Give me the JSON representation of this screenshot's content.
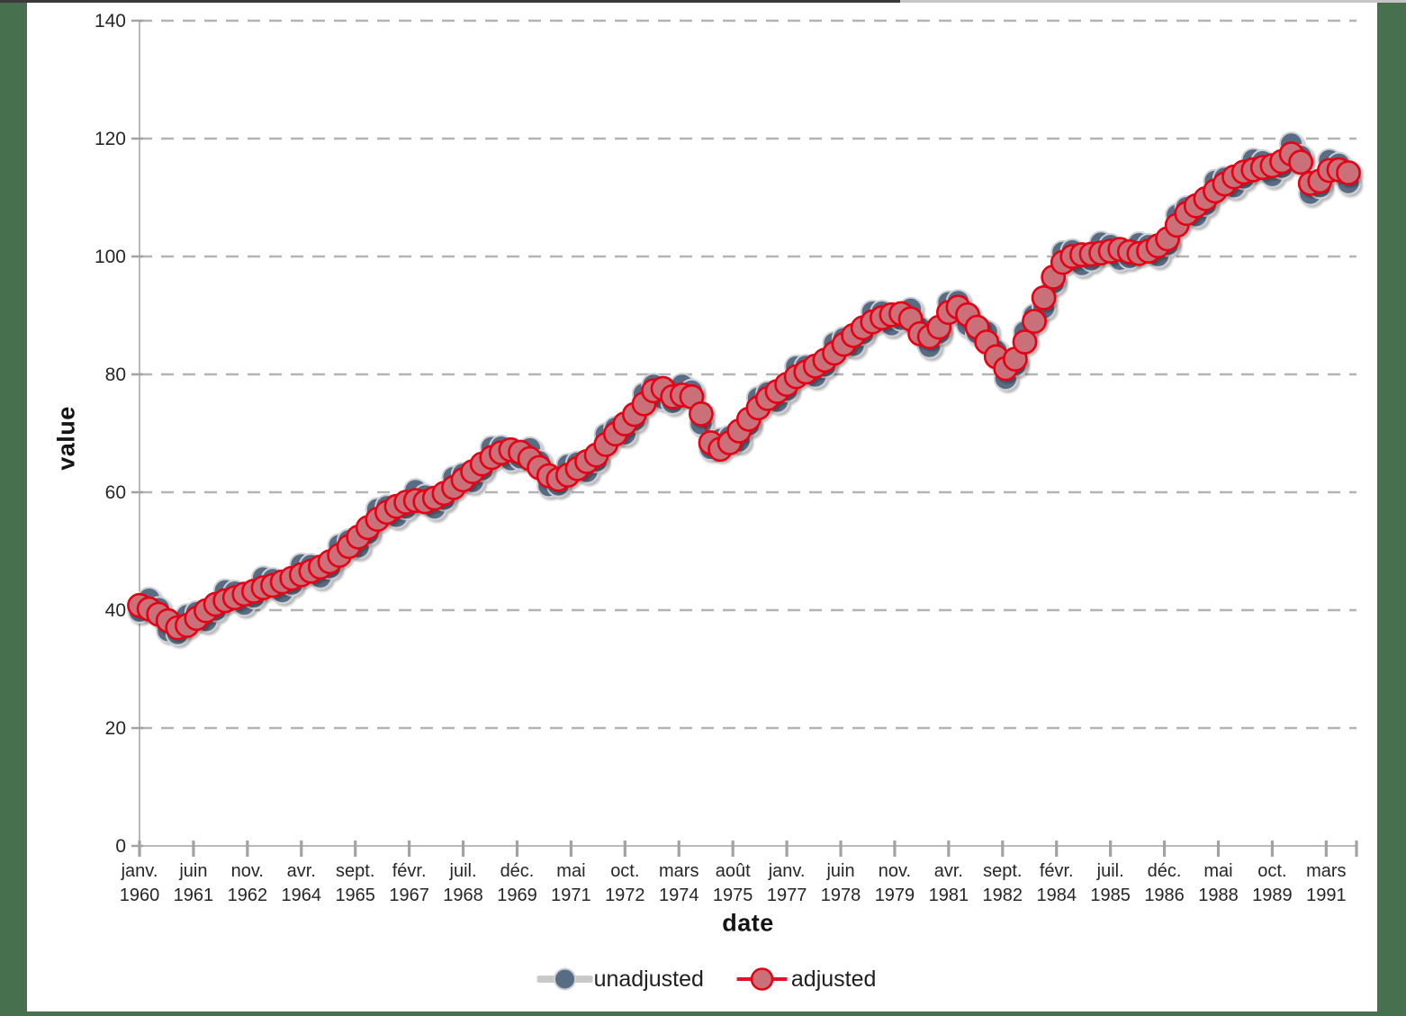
{
  "window": {
    "border_color": "#47704e",
    "panel_color": "#ffffff",
    "bottom_strip_color": "#c9c9c9"
  },
  "axes": {
    "xlabel": "date",
    "ylabel": "value"
  },
  "legend": {
    "items": [
      {
        "label": "unadjusted"
      },
      {
        "label": "adjusted"
      }
    ]
  },
  "chart_data": {
    "type": "line",
    "title": "",
    "xlabel": "date",
    "ylabel": "value",
    "ylim": [
      0,
      140
    ],
    "yticks": [
      0,
      20,
      40,
      60,
      80,
      100,
      120,
      140
    ],
    "grid": "horizontal-dashed",
    "gridline_color": "#b3b3b3",
    "axis_color": "#b9b9b9",
    "tick_color": "#a2a2a2",
    "tick_label_color": "#262626",
    "legend_position": "bottom-center",
    "frequency": "quarterly",
    "x_months_per_point": 3,
    "x_tick_interval_months": 17,
    "xticks": [
      {
        "m": 0,
        "month": "janv.",
        "year": "1960"
      },
      {
        "m": 17,
        "month": "juin",
        "year": "1961"
      },
      {
        "m": 34,
        "month": "nov.",
        "year": "1962"
      },
      {
        "m": 51,
        "month": "avr.",
        "year": "1964"
      },
      {
        "m": 68,
        "month": "sept.",
        "year": "1965"
      },
      {
        "m": 85,
        "month": "févr.",
        "year": "1967"
      },
      {
        "m": 102,
        "month": "juil.",
        "year": "1968"
      },
      {
        "m": 119,
        "month": "déc.",
        "year": "1969"
      },
      {
        "m": 136,
        "month": "mai",
        "year": "1971"
      },
      {
        "m": 153,
        "month": "oct.",
        "year": "1972"
      },
      {
        "m": 170,
        "month": "mars",
        "year": "1974"
      },
      {
        "m": 187,
        "month": "août",
        "year": "1975"
      },
      {
        "m": 204,
        "month": "janv.",
        "year": "1977"
      },
      {
        "m": 221,
        "month": "juin",
        "year": "1978"
      },
      {
        "m": 238,
        "month": "nov.",
        "year": "1979"
      },
      {
        "m": 255,
        "month": "avr.",
        "year": "1981"
      },
      {
        "m": 272,
        "month": "sept.",
        "year": "1982"
      },
      {
        "m": 289,
        "month": "févr.",
        "year": "1984"
      },
      {
        "m": 306,
        "month": "juil.",
        "year": "1985"
      },
      {
        "m": 323,
        "month": "déc.",
        "year": "1986"
      },
      {
        "m": 340,
        "month": "mai",
        "year": "1988"
      },
      {
        "m": 357,
        "month": "oct.",
        "year": "1989"
      },
      {
        "m": 374,
        "month": "mars",
        "year": "1991"
      }
    ],
    "periods": [
      "janv. 1960",
      "avr. 1960",
      "juil. 1960",
      "oct. 1960",
      "janv. 1961",
      "avr. 1961",
      "juil. 1961",
      "oct. 1961",
      "janv. 1962",
      "avr. 1962",
      "juil. 1962",
      "oct. 1962",
      "janv. 1963",
      "avr. 1963",
      "juil. 1963",
      "oct. 1963",
      "janv. 1964",
      "avr. 1964",
      "juil. 1964",
      "oct. 1964",
      "janv. 1965",
      "avr. 1965",
      "juil. 1965",
      "oct. 1965",
      "janv. 1966",
      "avr. 1966",
      "juil. 1966",
      "oct. 1966",
      "janv. 1967",
      "avr. 1967",
      "juil. 1967",
      "oct. 1967",
      "janv. 1968",
      "avr. 1968",
      "juil. 1968",
      "oct. 1968",
      "janv. 1969",
      "avr. 1969",
      "juil. 1969",
      "oct. 1969",
      "janv. 1970",
      "avr. 1970",
      "juil. 1970",
      "oct. 1970",
      "janv. 1971",
      "avr. 1971",
      "juil. 1971",
      "oct. 1971",
      "janv. 1972",
      "avr. 1972",
      "juil. 1972",
      "oct. 1972",
      "janv. 1973",
      "avr. 1973",
      "juil. 1973",
      "oct. 1973",
      "janv. 1974",
      "avr. 1974",
      "juil. 1974",
      "oct. 1974",
      "janv. 1975",
      "avr. 1975",
      "juil. 1975",
      "oct. 1975",
      "janv. 1976",
      "avr. 1976",
      "juil. 1976",
      "oct. 1976",
      "janv. 1977",
      "avr. 1977",
      "juil. 1977",
      "oct. 1977",
      "janv. 1978",
      "avr. 1978",
      "juil. 1978",
      "oct. 1978",
      "janv. 1979",
      "avr. 1979",
      "juil. 1979",
      "oct. 1979",
      "janv. 1980",
      "avr. 1980",
      "juil. 1980",
      "oct. 1980",
      "janv. 1981",
      "avr. 1981",
      "juil. 1981",
      "oct. 1981",
      "janv. 1982",
      "avr. 1982",
      "juil. 1982",
      "oct. 1982",
      "janv. 1983",
      "avr. 1983",
      "juil. 1983",
      "oct. 1983",
      "janv. 1984",
      "avr. 1984",
      "juil. 1984",
      "oct. 1984",
      "janv. 1985",
      "avr. 1985",
      "juil. 1985",
      "oct. 1985",
      "janv. 1986",
      "avr. 1986",
      "juil. 1986",
      "oct. 1986",
      "janv. 1987",
      "avr. 1987",
      "juil. 1987",
      "oct. 1987",
      "janv. 1988",
      "avr. 1988",
      "juil. 1988",
      "oct. 1988",
      "janv. 1989",
      "avr. 1989",
      "juil. 1989",
      "oct. 1989",
      "janv. 1990",
      "avr. 1990",
      "juil. 1990",
      "oct. 1990",
      "janv. 1991",
      "avr. 1991",
      "juil. 1991",
      "oct. 1991"
    ],
    "series": [
      {
        "name": "unadjusted",
        "line_color": "#c9c9c9",
        "marker_fill": "#586c83",
        "marker_stroke": "#ccd0d5",
        "values": [
          39.8,
          41.9,
          40.3,
          36.5,
          36.0,
          39.1,
          39.6,
          38.2,
          40.0,
          43.3,
          43.1,
          41.0,
          42.2,
          45.5,
          45.2,
          43.1,
          44.4,
          47.7,
          47.6,
          45.6,
          47.2,
          51.0,
          51.8,
          50.7,
          53.0,
          57.1,
          57.6,
          55.9,
          57.3,
          60.3,
          59.4,
          57.3,
          58.8,
          62.5,
          63.1,
          61.8,
          63.8,
          67.6,
          67.7,
          65.5,
          65.8,
          67.4,
          65.2,
          61.1,
          61.2,
          64.6,
          65.0,
          63.5,
          65.3,
          69.8,
          70.9,
          69.9,
          72.2,
          76.7,
          78.2,
          75.9,
          75.2,
          78.2,
          77.2,
          71.6,
          67.4,
          69.0,
          69.4,
          68.7,
          71.4,
          76.0,
          76.9,
          75.4,
          77.3,
          81.3,
          81.4,
          79.7,
          81.4,
          85.3,
          86.1,
          84.9,
          86.9,
          90.6,
          90.6,
          88.4,
          89.3,
          91.1,
          87.9,
          84.7,
          87.0,
          92.2,
          92.4,
          88.4,
          87.0,
          87.2,
          84.0,
          79.3,
          81.6,
          87.2,
          90.0,
          91.3,
          95.5,
          100.7,
          101.0,
          98.6,
          99.4,
          102.3,
          101.9,
          99.5,
          99.8,
          102.2,
          101.9,
          100.1,
          102.0,
          107.0,
          108.3,
          106.9,
          108.8,
          112.8,
          113.3,
          111.8,
          113.3,
          116.4,
          116.1,
          113.7,
          115.1,
          119.1,
          117.0,
          110.7,
          111.8,
          116.3,
          115.7,
          112.5
        ]
      },
      {
        "name": "adjusted",
        "line_color": "#e8112a",
        "marker_fill": "#c97078",
        "marker_stroke": "#e60013",
        "values": [
          40.8,
          40.2,
          39.3,
          38.2,
          37.0,
          37.4,
          38.6,
          39.9,
          41.0,
          41.6,
          42.1,
          42.7,
          43.2,
          43.8,
          44.2,
          44.8,
          45.4,
          46.0,
          46.6,
          47.3,
          48.2,
          49.3,
          50.8,
          52.4,
          54.0,
          55.4,
          56.6,
          57.6,
          58.3,
          58.6,
          58.4,
          59.0,
          59.8,
          60.8,
          62.1,
          63.5,
          64.8,
          65.9,
          66.7,
          67.2,
          66.8,
          65.7,
          64.2,
          62.8,
          62.2,
          62.9,
          64.0,
          65.2,
          66.3,
          68.1,
          69.9,
          71.6,
          73.2,
          75.0,
          77.2,
          77.6,
          76.2,
          76.5,
          76.2,
          73.3,
          68.4,
          67.3,
          68.4,
          70.4,
          72.4,
          74.3,
          75.9,
          77.1,
          78.3,
          79.6,
          80.4,
          81.4,
          82.4,
          83.6,
          85.1,
          86.6,
          87.9,
          88.9,
          89.6,
          90.1,
          90.3,
          89.4,
          86.9,
          86.4,
          88.0,
          90.5,
          91.4,
          90.1,
          88.0,
          85.5,
          83.0,
          81.0,
          82.6,
          85.5,
          89.0,
          93.0,
          96.5,
          99.0,
          100.0,
          100.3,
          100.4,
          100.6,
          100.9,
          101.2,
          100.8,
          100.5,
          100.9,
          101.8,
          103.0,
          105.3,
          107.3,
          108.6,
          109.8,
          111.1,
          112.3,
          113.5,
          114.3,
          114.7,
          115.1,
          115.4,
          116.1,
          117.4,
          116.0,
          112.4,
          112.8,
          114.6,
          114.7,
          114.2
        ]
      }
    ]
  }
}
